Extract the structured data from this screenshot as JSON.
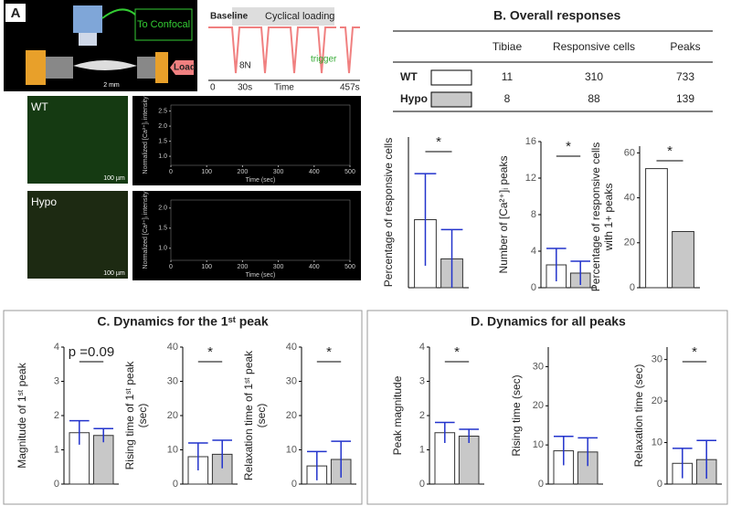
{
  "panel_a": {
    "label": "A",
    "setup": {
      "to_confocal": "To Confocal",
      "scale": "2 mm",
      "load": "Load"
    },
    "protocol": {
      "baseline": "Baseline",
      "cyclical": "Cyclical loading",
      "force": "8N",
      "trigger": "trigger",
      "t0": "0",
      "t1": "30s",
      "time": "Time",
      "t_end": "457s"
    },
    "traces": [
      {
        "group": "WT",
        "scale_bar": "100 µm",
        "y_label": "Normalized [Ca²⁺]ᵢ intensity",
        "x_label": "Time (sec)",
        "xlim": [
          0,
          500
        ],
        "xticks": [
          0,
          100,
          200,
          300,
          400,
          500
        ],
        "ylim": [
          0.7,
          2.7
        ],
        "yticks": [
          {
            "value": 1,
            "label": "1.0"
          },
          {
            "value": 1.5,
            "label": "1.5"
          },
          {
            "value": 2,
            "label": "2.0"
          },
          {
            "value": 2.5,
            "label": "2.5"
          }
        ]
      },
      {
        "group": "Hypo",
        "scale_bar": "100 µm",
        "y_label": "Normalized [Ca²⁺]ᵢ intensity",
        "x_label": "Time (sec)",
        "xlim": [
          0,
          500
        ],
        "xticks": [
          0,
          100,
          200,
          300,
          400,
          500
        ],
        "ylim": [
          0.7,
          2.2
        ],
        "yticks": [
          {
            "value": 1,
            "label": "1.0"
          },
          {
            "value": 1.5,
            "label": "1.5"
          },
          {
            "value": 2,
            "label": "2.0"
          }
        ]
      }
    ]
  },
  "panel_b": {
    "title": "B.  Overall responses",
    "table": {
      "header": [
        "Tibiae",
        "Responsive cells",
        "Peaks"
      ],
      "rows": [
        [
          "WT",
          11,
          310,
          733
        ],
        [
          "Hypo",
          8,
          88,
          139
        ]
      ]
    }
  },
  "panel_c": {
    "title": "C.  Dynamics for the 1ˢᵗ peak"
  },
  "panel_d": {
    "title": "D.  Dynamics for all peaks"
  },
  "chart_data": [
    {
      "type": "bar",
      "y_label": [
        "Percentage of responsive cells"
      ],
      "values": [
        15.8,
        6.7
      ],
      "errors": [
        10.7,
        6.8
      ],
      "colors": [
        "#ffffff",
        "#c8c8c8"
      ],
      "ylim": [
        0,
        35
      ],
      "yticks": [],
      "annotation": "*"
    },
    {
      "type": "bar",
      "y_label": [
        "Number of [Ca²⁺]ᵢ peaks"
      ],
      "values": [
        2.5,
        1.6
      ],
      "errors": [
        1.8,
        1.3
      ],
      "colors": [
        "#ffffff",
        "#c8c8c8"
      ],
      "ylim": [
        0,
        16
      ],
      "yticks": [
        0,
        4,
        8,
        12,
        16
      ],
      "annotation": "*"
    },
    {
      "type": "bar",
      "y_label": [
        "Percentage of responsive cells",
        "with 1+ peaks"
      ],
      "values": [
        53,
        25
      ],
      "colors": [
        "#ffffff",
        "#c8c8c8"
      ],
      "ylim": [
        0,
        63
      ],
      "yticks": [
        0,
        20,
        40,
        60
      ],
      "annotation": "*"
    },
    {
      "type": "bar",
      "y_label": [
        "Magnitude of 1ˢᵗ peak"
      ],
      "values": [
        1.5,
        1.42
      ],
      "errors": [
        0.35,
        0.2
      ],
      "colors": [
        "#ffffff",
        "#c8c8c8"
      ],
      "ylim": [
        0,
        4
      ],
      "yticks": [
        0,
        1,
        2,
        3,
        4
      ],
      "annotation": "p =0.09"
    },
    {
      "type": "bar",
      "y_label": [
        "Rising time of 1ˢᵗ peak",
        "(sec)"
      ],
      "values": [
        8,
        8.7
      ],
      "errors": [
        4,
        4.1
      ],
      "colors": [
        "#ffffff",
        "#c8c8c8"
      ],
      "ylim": [
        0,
        40
      ],
      "yticks": [
        0,
        10,
        20,
        30,
        40
      ],
      "annotation": "*"
    },
    {
      "type": "bar",
      "y_label": [
        "Relaxation time of 1ˢᵗ peak",
        "(sec)"
      ],
      "values": [
        5.3,
        7.2
      ],
      "errors": [
        4.2,
        5.3
      ],
      "colors": [
        "#ffffff",
        "#c8c8c8"
      ],
      "ylim": [
        0,
        40
      ],
      "yticks": [
        0,
        10,
        20,
        30,
        40
      ],
      "annotation": "*"
    },
    {
      "type": "bar",
      "y_label": [
        "Peak magnitude"
      ],
      "values": [
        1.5,
        1.4
      ],
      "errors": [
        0.3,
        0.2
      ],
      "colors": [
        "#ffffff",
        "#c8c8c8"
      ],
      "ylim": [
        0,
        4
      ],
      "yticks": [
        0,
        1,
        2,
        3,
        4
      ],
      "annotation": "*"
    },
    {
      "type": "bar",
      "y_label": [
        "Rising time (sec)"
      ],
      "values": [
        8.5,
        8.2
      ],
      "errors": [
        3.7,
        3.6
      ],
      "colors": [
        "#ffffff",
        "#c8c8c8"
      ],
      "ylim": [
        0,
        35
      ],
      "yticks": [
        0,
        10,
        20,
        30
      ]
    },
    {
      "type": "bar",
      "y_label": [
        "Relaxation time (sec)"
      ],
      "values": [
        5,
        5.9
      ],
      "errors": [
        3.6,
        4.6
      ],
      "colors": [
        "#ffffff",
        "#c8c8c8"
      ],
      "ylim": [
        0,
        33
      ],
      "yticks": [
        0,
        10,
        20,
        30
      ],
      "annotation": "*"
    }
  ]
}
